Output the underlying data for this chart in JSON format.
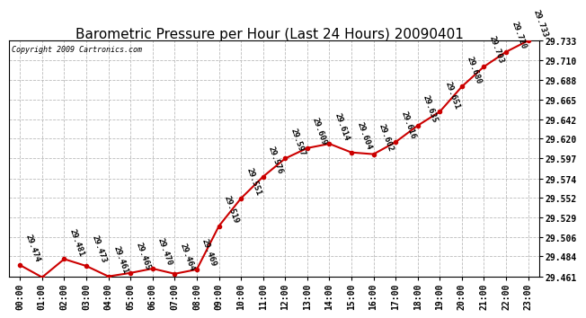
{
  "title": "Barometric Pressure per Hour (Last 24 Hours) 20090401",
  "copyright": "Copyright 2009 Cartronics.com",
  "hours": [
    "00:00",
    "01:00",
    "02:00",
    "03:00",
    "04:00",
    "05:00",
    "06:00",
    "07:00",
    "08:00",
    "09:00",
    "10:00",
    "11:00",
    "12:00",
    "13:00",
    "14:00",
    "15:00",
    "16:00",
    "17:00",
    "18:00",
    "19:00",
    "20:00",
    "21:00",
    "22:00",
    "23:00"
  ],
  "values": [
    29.474,
    29.46,
    29.481,
    29.473,
    29.461,
    29.465,
    29.47,
    29.464,
    29.469,
    29.519,
    29.551,
    29.576,
    29.597,
    29.609,
    29.614,
    29.604,
    29.602,
    29.616,
    29.635,
    29.651,
    29.68,
    29.703,
    29.72,
    29.733
  ],
  "yticks": [
    29.461,
    29.484,
    29.506,
    29.529,
    29.552,
    29.574,
    29.597,
    29.62,
    29.642,
    29.665,
    29.688,
    29.71,
    29.733
  ],
  "line_color": "#cc0000",
  "marker_color": "#cc0000",
  "bg_color": "#ffffff",
  "grid_color": "#bbbbbb",
  "title_fontsize": 11,
  "tick_fontsize": 7,
  "annotation_fontsize": 6.5,
  "plot_bg": "#ffffff"
}
